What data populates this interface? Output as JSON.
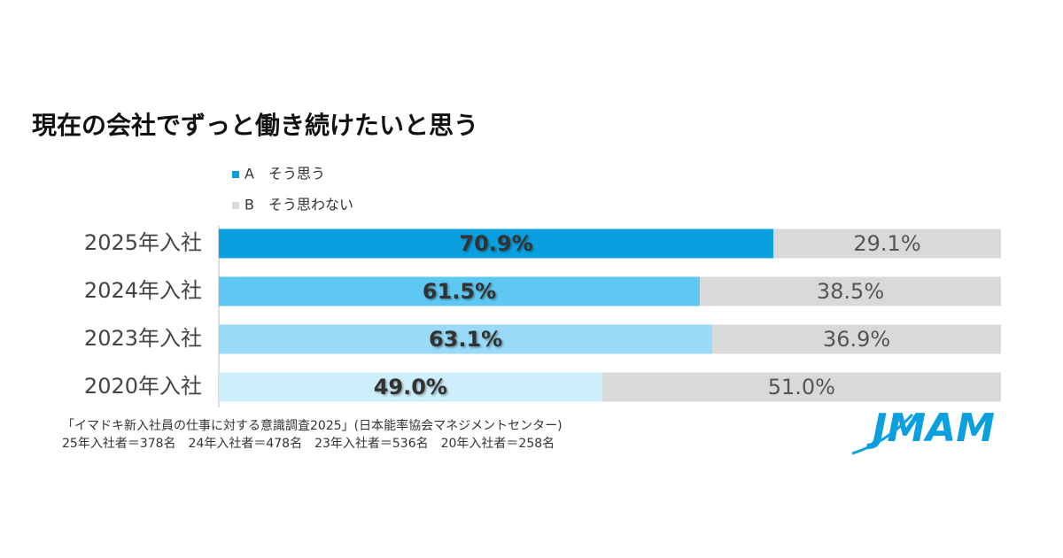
{
  "chart_data": {
    "type": "stacked-bar-horizontal",
    "title": "現在の会社でずっと働き続けたいと思う",
    "categories": [
      "2025年入社",
      "2024年入社",
      "2023年入社",
      "2020年入社"
    ],
    "series": [
      {
        "name": "A　そう思う",
        "color": "#0aa0e0",
        "colors": [
          "#0aa0e0",
          "#5ec8f2",
          "#98daf7",
          "#cdeefb"
        ],
        "values": [
          70.9,
          61.5,
          63.1,
          49.0
        ],
        "value_labels": [
          "70.9%",
          "61.5%",
          "63.1%",
          "49.0%"
        ]
      },
      {
        "name": "B　そう思わない",
        "color": "#d9d9d9",
        "values": [
          29.1,
          38.5,
          36.9,
          51.0
        ],
        "value_labels": [
          "29.1%",
          "38.5%",
          "36.9%",
          "51.0%"
        ]
      }
    ],
    "xlim": [
      0,
      100
    ],
    "notes": [
      "「イマドキ新入社員の仕事に対する意識調査2025」(日本能率協会マネジメントセンター)",
      "25年入社者＝378名　24年入社者＝478名　23年入社者＝536名　20年入社者＝258名"
    ],
    "logo": "JMAM"
  }
}
